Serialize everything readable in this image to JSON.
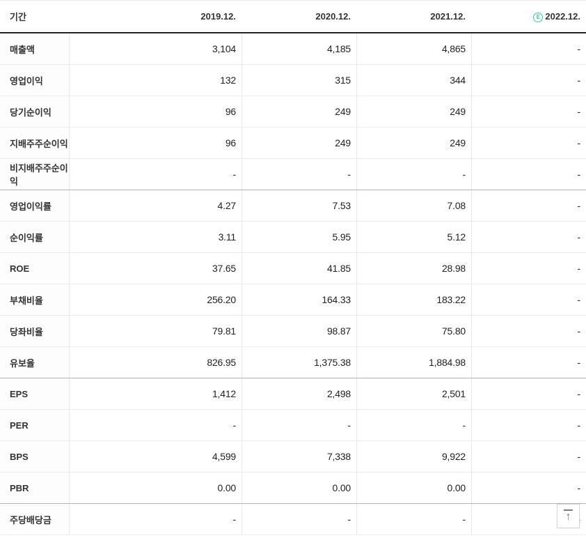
{
  "table": {
    "header": {
      "period_label": "기간",
      "columns": [
        "2019.12.",
        "2020.12.",
        "2021.12.",
        "2022.12."
      ],
      "estimate_badge": "E"
    },
    "rows": [
      {
        "label": "매출액",
        "values": [
          "3,104",
          "4,185",
          "4,865",
          "-"
        ],
        "group_end": false
      },
      {
        "label": "영업이익",
        "values": [
          "132",
          "315",
          "344",
          "-"
        ],
        "group_end": false
      },
      {
        "label": "당기순이익",
        "values": [
          "96",
          "249",
          "249",
          "-"
        ],
        "group_end": false
      },
      {
        "label": "지배주주순이익",
        "values": [
          "96",
          "249",
          "249",
          "-"
        ],
        "group_end": false
      },
      {
        "label": "비지배주주순이익",
        "values": [
          "-",
          "-",
          "-",
          "-"
        ],
        "group_end": true
      },
      {
        "label": "영업이익률",
        "values": [
          "4.27",
          "7.53",
          "7.08",
          "-"
        ],
        "group_end": false
      },
      {
        "label": "순이익률",
        "values": [
          "3.11",
          "5.95",
          "5.12",
          "-"
        ],
        "group_end": false
      },
      {
        "label": "ROE",
        "values": [
          "37.65",
          "41.85",
          "28.98",
          "-"
        ],
        "group_end": false
      },
      {
        "label": "부채비율",
        "values": [
          "256.20",
          "164.33",
          "183.22",
          "-"
        ],
        "group_end": false
      },
      {
        "label": "당좌비율",
        "values": [
          "79.81",
          "98.87",
          "75.80",
          "-"
        ],
        "group_end": false
      },
      {
        "label": "유보율",
        "values": [
          "826.95",
          "1,375.38",
          "1,884.98",
          "-"
        ],
        "group_end": true
      },
      {
        "label": "EPS",
        "values": [
          "1,412",
          "2,498",
          "2,501",
          "-"
        ],
        "group_end": false
      },
      {
        "label": "PER",
        "values": [
          "-",
          "-",
          "-",
          "-"
        ],
        "group_end": false
      },
      {
        "label": "BPS",
        "values": [
          "4,599",
          "7,338",
          "9,922",
          "-"
        ],
        "group_end": false
      },
      {
        "label": "PBR",
        "values": [
          "0.00",
          "0.00",
          "0.00",
          "-"
        ],
        "group_end": true
      },
      {
        "label": "주당배당금",
        "values": [
          "-",
          "-",
          "-",
          "-"
        ],
        "group_end": false
      }
    ]
  },
  "colors": {
    "accent_green": "#3ec7a5",
    "header_divider": "#222222",
    "group_divider": "#b3b3b3"
  },
  "scroll_top_button": {
    "icon": "arrow-up-to-top"
  }
}
